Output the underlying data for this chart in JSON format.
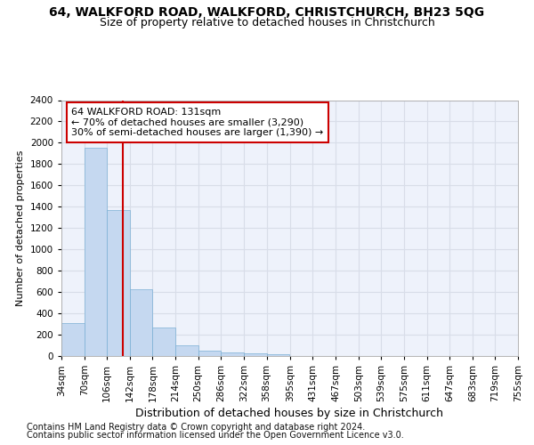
{
  "title1": "64, WALKFORD ROAD, WALKFORD, CHRISTCHURCH, BH23 5QG",
  "title2": "Size of property relative to detached houses in Christchurch",
  "xlabel": "Distribution of detached houses by size in Christchurch",
  "ylabel": "Number of detached properties",
  "footnote1": "Contains HM Land Registry data © Crown copyright and database right 2024.",
  "footnote2": "Contains public sector information licensed under the Open Government Licence v3.0.",
  "bin_edges": [
    34,
    70,
    106,
    142,
    178,
    214,
    250,
    286,
    322,
    358,
    395,
    431,
    467,
    503,
    539,
    575,
    611,
    647,
    683,
    719,
    755
  ],
  "bar_heights": [
    310,
    1950,
    1370,
    630,
    270,
    100,
    48,
    32,
    25,
    20,
    0,
    0,
    0,
    0,
    0,
    0,
    0,
    0,
    0,
    0
  ],
  "bar_color": "#c5d8f0",
  "bar_edge_color": "#7bafd4",
  "property_size": 131,
  "property_line_color": "#cc0000",
  "annotation_line1": "64 WALKFORD ROAD: 131sqm",
  "annotation_line2": "← 70% of detached houses are smaller (3,290)",
  "annotation_line3": "30% of semi-detached houses are larger (1,390) →",
  "annotation_box_edge_color": "#cc0000",
  "ylim": [
    0,
    2400
  ],
  "yticks": [
    0,
    200,
    400,
    600,
    800,
    1000,
    1200,
    1400,
    1600,
    1800,
    2000,
    2200,
    2400
  ],
  "background_color": "#eef2fb",
  "grid_color": "#d8dde8",
  "title1_fontsize": 10,
  "title2_fontsize": 9,
  "xlabel_fontsize": 9,
  "ylabel_fontsize": 8,
  "tick_fontsize": 7.5,
  "annotation_fontsize": 8,
  "footnote_fontsize": 7
}
